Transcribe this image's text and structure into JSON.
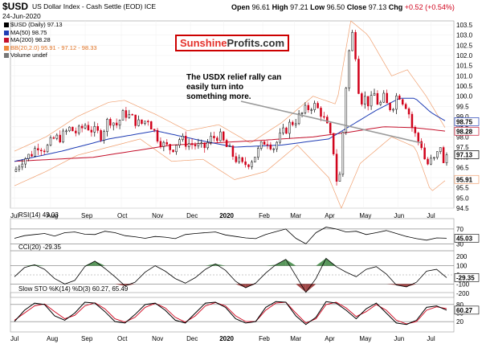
{
  "header": {
    "symbol": "$USD",
    "description": "US Dollar Index - Cash Settle (EOD)",
    "exchange": "ICE",
    "date": "24-Jun-2020",
    "open_label": "Open",
    "open": "96.61",
    "high_label": "High",
    "high": "97.21",
    "low_label": "Low",
    "low": "96.50",
    "close_label": "Close",
    "close": "97.13",
    "chg_label": "Chg",
    "chg": "+0.52 (+0.54%)"
  },
  "legend": [
    {
      "text": "$USD (Daily) 97.13",
      "color": "#000000"
    },
    {
      "text": "MA(50) 98.75",
      "color": "#1f3db5"
    },
    {
      "text": "MA(200) 98.28",
      "color": "#c4102b"
    },
    {
      "text": "BB(20,2.0) 95.91 - 97.12 - 98.33",
      "color": "#f08a3c"
    },
    {
      "text": "Volume undef",
      "color": "#777777"
    }
  ],
  "brand": {
    "part1": "Sunshine",
    "part2": "Profits.com"
  },
  "annotation": "The USDX relief rally can easily turn into something more.",
  "colors": {
    "up": "#000000",
    "down": "#d0021b",
    "ma50": "#1f3db5",
    "ma200": "#c4102b",
    "bb": "#f0a070",
    "osc_fill_pos": "#2e7d32",
    "osc_fill_neg": "#8b1a1a"
  },
  "chart_data": [
    {
      "type": "candlestick",
      "title": "$USD US Dollar Index - Cash Settle (EOD) ICE",
      "ylim": [
        94.5,
        103.7
      ],
      "y_ticks": [
        "103.5",
        "103.0",
        "102.5",
        "102.0",
        "101.5",
        "101.0",
        "100.5",
        "100.0",
        "99.5",
        "99.0",
        "98.5",
        "98.0",
        "97.5",
        "97.0",
        "96.5",
        "96.0",
        "95.5",
        "95.0",
        "94.5"
      ],
      "x_ticks": [
        "Jul",
        "Aug",
        "Sep",
        "Oct",
        "Nov",
        "Dec",
        "2020",
        "Feb",
        "Mar",
        "Apr",
        "May",
        "Jun",
        "Jul"
      ],
      "price_labels": {
        "ma50": "98.75",
        "ma200": "98.28",
        "close": "97.13",
        "bb_lower": "95.91"
      },
      "series": [
        {
          "name": "Close",
          "points": [
            [
              0,
              96.3
            ],
            [
              5,
              96.9
            ],
            [
              10,
              97.1
            ],
            [
              15,
              97.6
            ],
            [
              20,
              97.4
            ],
            [
              25,
              97.9
            ],
            [
              30,
              98.0
            ],
            [
              35,
              98.4
            ],
            [
              40,
              98.2
            ],
            [
              45,
              98.6
            ],
            [
              50,
              98.3
            ],
            [
              55,
              98.1
            ],
            [
              60,
              98.9
            ],
            [
              65,
              98.6
            ],
            [
              70,
              99.2
            ],
            [
              75,
              98.9
            ],
            [
              80,
              98.6
            ],
            [
              85,
              98.9
            ],
            [
              90,
              98.1
            ],
            [
              95,
              97.6
            ],
            [
              100,
              97.4
            ],
            [
              105,
              97.9
            ],
            [
              110,
              97.7
            ],
            [
              115,
              97.6
            ],
            [
              120,
              97.4
            ],
            [
              125,
              97.9
            ],
            [
              130,
              98.1
            ],
            [
              135,
              97.5
            ],
            [
              140,
              97.0
            ],
            [
              145,
              96.6
            ],
            [
              150,
              96.8
            ],
            [
              155,
              97.3
            ],
            [
              160,
              97.9
            ],
            [
              165,
              97.5
            ],
            [
              170,
              98.1
            ],
            [
              175,
              98.6
            ],
            [
              180,
              98.9
            ],
            [
              185,
              99.3
            ],
            [
              190,
              99.6
            ],
            [
              195,
              99.2
            ],
            [
              200,
              98.3
            ],
            [
              203,
              97.3
            ],
            [
              206,
              95.2
            ],
            [
              208,
              97.0
            ],
            [
              210,
              99.5
            ],
            [
              212,
              101.5
            ],
            [
              214,
              102.9
            ],
            [
              216,
              103.2
            ],
            [
              218,
              101.0
            ],
            [
              220,
              99.8
            ],
            [
              223,
              99.9
            ],
            [
              226,
              99.6
            ],
            [
              229,
              100.1
            ],
            [
              232,
              99.5
            ],
            [
              235,
              99.9
            ],
            [
              238,
              99.4
            ],
            [
              241,
              99.6
            ],
            [
              244,
              100.2
            ],
            [
              247,
              99.8
            ],
            [
              250,
              99.5
            ],
            [
              253,
              98.5
            ],
            [
              256,
              97.9
            ],
            [
              259,
              97.6
            ],
            [
              262,
              96.6
            ],
            [
              265,
              96.8
            ],
            [
              268,
              96.9
            ],
            [
              271,
              97.6
            ],
            [
              273,
              96.6
            ],
            [
              275,
              97.13
            ]
          ]
        },
        {
          "name": "MA(50)",
          "points": [
            [
              0,
              96.8
            ],
            [
              30,
              97.3
            ],
            [
              60,
              97.9
            ],
            [
              90,
              98.3
            ],
            [
              120,
              97.8
            ],
            [
              140,
              97.5
            ],
            [
              170,
              97.6
            ],
            [
              200,
              97.9
            ],
            [
              215,
              98.6
            ],
            [
              230,
              99.3
            ],
            [
              245,
              99.9
            ],
            [
              255,
              99.9
            ],
            [
              265,
              99.2
            ],
            [
              275,
              98.75
            ]
          ]
        },
        {
          "name": "MA(200)",
          "points": [
            [
              0,
              96.8
            ],
            [
              50,
              97.0
            ],
            [
              100,
              97.6
            ],
            [
              150,
              97.8
            ],
            [
              190,
              98.0
            ],
            [
              210,
              98.2
            ],
            [
              235,
              98.5
            ],
            [
              255,
              98.45
            ],
            [
              275,
              98.28
            ]
          ]
        },
        {
          "name": "BB upper",
          "points": [
            [
              0,
              97.3
            ],
            [
              20,
              98.0
            ],
            [
              40,
              99.0
            ],
            [
              60,
              99.7
            ],
            [
              70,
              99.8
            ],
            [
              90,
              99.1
            ],
            [
              110,
              98.3
            ],
            [
              130,
              98.6
            ],
            [
              150,
              97.7
            ],
            [
              170,
              98.7
            ],
            [
              190,
              100.0
            ],
            [
              205,
              99.6
            ],
            [
              214,
              103.7
            ],
            [
              225,
              103.0
            ],
            [
              240,
              101.0
            ],
            [
              250,
              101.3
            ],
            [
              262,
              100.0
            ],
            [
              275,
              98.33
            ]
          ]
        },
        {
          "name": "BB lower",
          "points": [
            [
              0,
              95.6
            ],
            [
              20,
              96.3
            ],
            [
              40,
              97.1
            ],
            [
              60,
              97.5
            ],
            [
              80,
              97.9
            ],
            [
              100,
              96.8
            ],
            [
              120,
              96.9
            ],
            [
              140,
              95.9
            ],
            [
              160,
              96.3
            ],
            [
              180,
              97.6
            ],
            [
              200,
              96.0
            ],
            [
              208,
              94.5
            ],
            [
              220,
              96.7
            ],
            [
              240,
              98.0
            ],
            [
              255,
              97.5
            ],
            [
              265,
              95.3
            ],
            [
              275,
              95.91
            ]
          ]
        }
      ]
    },
    {
      "type": "line",
      "title": "RSI(14) 45.03",
      "ylim": [
        20,
        85
      ],
      "y_ticks": [
        "70",
        "50",
        "30"
      ],
      "level_lines": [
        70,
        30
      ],
      "value_label": "45.03",
      "values": [
        45,
        52,
        55,
        58,
        51,
        60,
        62,
        56,
        55,
        64,
        60,
        52,
        49,
        45,
        50,
        48,
        44,
        55,
        58,
        60,
        62,
        54,
        50,
        46,
        44,
        55,
        63,
        70,
        45,
        30,
        60,
        75,
        70,
        62,
        64,
        55,
        60,
        66,
        58,
        50,
        44,
        40,
        46,
        45.03
      ]
    },
    {
      "type": "area",
      "title": "CCI(20) -29.35",
      "ylim": [
        -210,
        210
      ],
      "y_ticks": [
        "200",
        "100",
        "0",
        "-100",
        "-200"
      ],
      "level_lines": [
        100,
        -100
      ],
      "value_label": "-29.35",
      "values": [
        -20,
        80,
        110,
        60,
        -40,
        -100,
        -60,
        90,
        150,
        70,
        -20,
        -120,
        -80,
        30,
        100,
        40,
        -40,
        -90,
        -30,
        60,
        120,
        50,
        -70,
        -140,
        -90,
        20,
        110,
        170,
        -10,
        -190,
        -40,
        180,
        90,
        30,
        -20,
        60,
        90,
        10,
        -110,
        -130,
        -80,
        40,
        60,
        -29.35
      ]
    },
    {
      "type": "line",
      "title": "Slow STO %K(14) %D(3) 60.27, 65.49",
      "ylim": [
        -5,
        105
      ],
      "y_ticks": [
        "80",
        "50",
        "20"
      ],
      "level_lines": [
        80,
        20
      ],
      "value_label": "60.27",
      "k_values": [
        20,
        60,
        85,
        80,
        40,
        25,
        50,
        88,
        85,
        55,
        20,
        15,
        45,
        80,
        85,
        60,
        25,
        15,
        50,
        85,
        88,
        70,
        30,
        15,
        20,
        70,
        90,
        88,
        40,
        10,
        35,
        90,
        85,
        60,
        30,
        65,
        85,
        50,
        15,
        10,
        25,
        70,
        75,
        60.27
      ],
      "d_values": [
        25,
        50,
        75,
        82,
        55,
        30,
        42,
        75,
        86,
        65,
        30,
        18,
        35,
        70,
        84,
        68,
        35,
        18,
        40,
        75,
        87,
        75,
        40,
        20,
        20,
        60,
        85,
        88,
        50,
        15,
        30,
        80,
        88,
        68,
        38,
        55,
        80,
        60,
        25,
        12,
        20,
        60,
        72,
        65.49
      ]
    }
  ]
}
